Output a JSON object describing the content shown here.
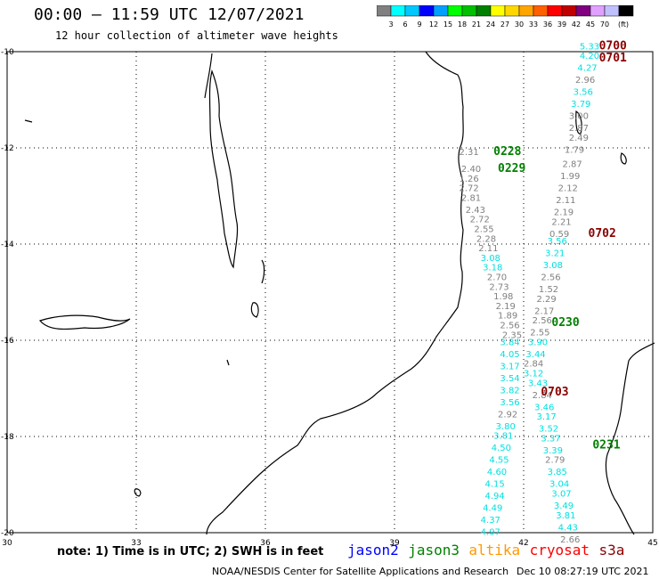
{
  "header": {
    "title": "00:00 – 11:59 UTC 12/07/2021",
    "subtitle": "12 hour collection of altimeter wave heights"
  },
  "color_scale": {
    "unit": "(ft)",
    "ticks": [
      "3",
      "6",
      "9",
      "12",
      "15",
      "18",
      "21",
      "24",
      "27",
      "30",
      "33",
      "36",
      "39",
      "42",
      "45",
      "70"
    ],
    "colors": [
      "#808080",
      "#00ffff",
      "#00c8ff",
      "#0000ff",
      "#00a0ff",
      "#00ff00",
      "#00c000",
      "#008000",
      "#ffff00",
      "#ffd700",
      "#ffa500",
      "#ff6000",
      "#ff0000",
      "#c00000",
      "#800080",
      "#e0a0ff",
      "#c0c0ff",
      "#000000"
    ]
  },
  "axes": {
    "lon_labels": [
      "30",
      "33",
      "36",
      "39",
      "42",
      "45"
    ],
    "lat_labels": [
      "-10",
      "-12",
      "-14",
      "-16",
      "-18",
      "-20"
    ]
  },
  "footer": {
    "note": "note: 1) Time is in UTC; 2) SWH is in feet",
    "satellites": [
      {
        "name": "jason2",
        "color": "#0000ff"
      },
      {
        "name": "jason3",
        "color": "#008000"
      },
      {
        "name": "altika",
        "color": "#ff9900"
      },
      {
        "name": "cryosat",
        "color": "#ff0000"
      },
      {
        "name": "s3a",
        "color": "#8b0000"
      }
    ],
    "credit": "NOAA/NESDIS Center for Satellite Applications and Research",
    "timestamp": "Dec 10 08:27:19 UTC 2021"
  },
  "tracks": [
    {
      "label": "0700",
      "color": "#8b0000",
      "lon": 43.75,
      "lat": -9.95
    },
    {
      "label": "0701",
      "color": "#8b0000",
      "lon": 43.75,
      "lat": -10.2
    },
    {
      "label": "0228",
      "color": "#008000",
      "lon": 41.3,
      "lat": -12.15
    },
    {
      "label": "0229",
      "color": "#008000",
      "lon": 41.4,
      "lat": -12.5
    },
    {
      "label": "0702",
      "color": "#8b0000",
      "lon": 43.5,
      "lat": -13.85
    },
    {
      "label": "0230",
      "color": "#008000",
      "lon": 42.65,
      "lat": -15.7
    },
    {
      "label": "0703",
      "color": "#8b0000",
      "lon": 42.4,
      "lat": -17.15
    },
    {
      "label": "0231",
      "color": "#008000",
      "lon": 43.6,
      "lat": -18.25
    }
  ],
  "observations": [
    {
      "v": "5.33",
      "c": "#00e0e0",
      "lon": 43.3,
      "lat": -9.95
    },
    {
      "v": "4.20",
      "c": "#00e0e0",
      "lon": 43.3,
      "lat": -10.15
    },
    {
      "v": "4.27",
      "c": "#00e0e0",
      "lon": 43.25,
      "lat": -10.4
    },
    {
      "v": "2.96",
      "c": "#808080",
      "lon": 43.2,
      "lat": -10.65
    },
    {
      "v": "3.56",
      "c": "#00e0e0",
      "lon": 43.15,
      "lat": -10.9
    },
    {
      "v": "3.79",
      "c": "#00e0e0",
      "lon": 43.1,
      "lat": -11.15
    },
    {
      "v": "3.00",
      "c": "#808080",
      "lon": 43.05,
      "lat": -11.4
    },
    {
      "v": "2.87",
      "c": "#808080",
      "lon": 43.05,
      "lat": -11.65
    },
    {
      "v": "2.49",
      "c": "#808080",
      "lon": 43.05,
      "lat": -11.85
    },
    {
      "v": "1.79",
      "c": "#808080",
      "lon": 42.95,
      "lat": -12.1
    },
    {
      "v": "2.87",
      "c": "#808080",
      "lon": 42.9,
      "lat": -12.4
    },
    {
      "v": "1.99",
      "c": "#808080",
      "lon": 42.85,
      "lat": -12.65
    },
    {
      "v": "2.12",
      "c": "#808080",
      "lon": 42.8,
      "lat": -12.9
    },
    {
      "v": "2.11",
      "c": "#808080",
      "lon": 42.75,
      "lat": -13.15
    },
    {
      "v": "2.19",
      "c": "#808080",
      "lon": 42.7,
      "lat": -13.4
    },
    {
      "v": "2.21",
      "c": "#808080",
      "lon": 42.65,
      "lat": -13.6
    },
    {
      "v": "0.59",
      "c": "#808080",
      "lon": 42.6,
      "lat": -13.85
    },
    {
      "v": "3.56",
      "c": "#00e0e0",
      "lon": 42.55,
      "lat": -14.0
    },
    {
      "v": "3.21",
      "c": "#00e0e0",
      "lon": 42.5,
      "lat": -14.25
    },
    {
      "v": "3.08",
      "c": "#00e0e0",
      "lon": 42.45,
      "lat": -14.5
    },
    {
      "v": "2.56",
      "c": "#808080",
      "lon": 42.4,
      "lat": -14.75
    },
    {
      "v": "1.52",
      "c": "#808080",
      "lon": 42.35,
      "lat": -15.0
    },
    {
      "v": "2.29",
      "c": "#808080",
      "lon": 42.3,
      "lat": -15.2
    },
    {
      "v": "2.17",
      "c": "#808080",
      "lon": 42.25,
      "lat": -15.45
    },
    {
      "v": "2.56",
      "c": "#808080",
      "lon": 42.2,
      "lat": -15.65
    },
    {
      "v": "2.55",
      "c": "#808080",
      "lon": 42.15,
      "lat": -15.9
    },
    {
      "v": "3.90",
      "c": "#00e0e0",
      "lon": 42.1,
      "lat": -16.1
    },
    {
      "v": "3.44",
      "c": "#00e0e0",
      "lon": 42.05,
      "lat": -16.35
    },
    {
      "v": "2.84",
      "c": "#808080",
      "lon": 42.0,
      "lat": -16.55
    },
    {
      "v": "3.12",
      "c": "#00e0e0",
      "lon": 42.0,
      "lat": -16.75
    },
    {
      "v": "3.43",
      "c": "#00e0e0",
      "lon": 42.1,
      "lat": -16.95
    },
    {
      "v": "2.84",
      "c": "#808080",
      "lon": 42.2,
      "lat": -17.2
    },
    {
      "v": "3.46",
      "c": "#00e0e0",
      "lon": 42.25,
      "lat": -17.45
    },
    {
      "v": "3.17",
      "c": "#00e0e0",
      "lon": 42.3,
      "lat": -17.65
    },
    {
      "v": "3.52",
      "c": "#00e0e0",
      "lon": 42.35,
      "lat": -17.9
    },
    {
      "v": "3.37",
      "c": "#00e0e0",
      "lon": 42.4,
      "lat": -18.1
    },
    {
      "v": "3.39",
      "c": "#00e0e0",
      "lon": 42.45,
      "lat": -18.35
    },
    {
      "v": "2.79",
      "c": "#808080",
      "lon": 42.5,
      "lat": -18.55
    },
    {
      "v": "3.85",
      "c": "#00e0e0",
      "lon": 42.55,
      "lat": -18.8
    },
    {
      "v": "3.04",
      "c": "#00e0e0",
      "lon": 42.6,
      "lat": -19.05
    },
    {
      "v": "3.07",
      "c": "#00e0e0",
      "lon": 42.65,
      "lat": -19.25
    },
    {
      "v": "3.49",
      "c": "#00e0e0",
      "lon": 42.7,
      "lat": -19.5
    },
    {
      "v": "3.81",
      "c": "#00e0e0",
      "lon": 42.75,
      "lat": -19.7
    },
    {
      "v": "4.43",
      "c": "#00e0e0",
      "lon": 42.8,
      "lat": -19.95
    },
    {
      "v": "2.66",
      "c": "#808080",
      "lon": 42.85,
      "lat": -20.2
    },
    {
      "v": "2.31",
      "c": "#808080",
      "lon": 40.5,
      "lat": -12.15
    },
    {
      "v": "2.40",
      "c": "#808080",
      "lon": 40.55,
      "lat": -12.5
    },
    {
      "v": "1.26",
      "c": "#808080",
      "lon": 40.5,
      "lat": -12.7
    },
    {
      "v": "2.72",
      "c": "#808080",
      "lon": 40.5,
      "lat": -12.9
    },
    {
      "v": "2.81",
      "c": "#808080",
      "lon": 40.55,
      "lat": -13.1
    },
    {
      "v": "2.43",
      "c": "#808080",
      "lon": 40.65,
      "lat": -13.35
    },
    {
      "v": "2.72",
      "c": "#808080",
      "lon": 40.75,
      "lat": -13.55
    },
    {
      "v": "2.55",
      "c": "#808080",
      "lon": 40.85,
      "lat": -13.75
    },
    {
      "v": "2.28",
      "c": "#808080",
      "lon": 40.9,
      "lat": -13.95
    },
    {
      "v": "2.11",
      "c": "#808080",
      "lon": 40.95,
      "lat": -14.15
    },
    {
      "v": "3.08",
      "c": "#00e0e0",
      "lon": 41.0,
      "lat": -14.35
    },
    {
      "v": "3.18",
      "c": "#00e0e0",
      "lon": 41.05,
      "lat": -14.55
    },
    {
      "v": "2.70",
      "c": "#808080",
      "lon": 41.15,
      "lat": -14.75
    },
    {
      "v": "2.73",
      "c": "#808080",
      "lon": 41.2,
      "lat": -14.95
    },
    {
      "v": "1.98",
      "c": "#808080",
      "lon": 41.3,
      "lat": -15.15
    },
    {
      "v": "2.19",
      "c": "#808080",
      "lon": 41.35,
      "lat": -15.35
    },
    {
      "v": "1.89",
      "c": "#808080",
      "lon": 41.4,
      "lat": -15.55
    },
    {
      "v": "2.56",
      "c": "#808080",
      "lon": 41.45,
      "lat": -15.75
    },
    {
      "v": "2.35",
      "c": "#808080",
      "lon": 41.5,
      "lat": -15.95
    },
    {
      "v": "3.84",
      "c": "#00e0e0",
      "lon": 41.45,
      "lat": -16.1
    },
    {
      "v": "4.05",
      "c": "#00e0e0",
      "lon": 41.45,
      "lat": -16.35
    },
    {
      "v": "3.17",
      "c": "#00e0e0",
      "lon": 41.45,
      "lat": -16.6
    },
    {
      "v": "3.54",
      "c": "#00e0e0",
      "lon": 41.45,
      "lat": -16.85
    },
    {
      "v": "3.82",
      "c": "#00e0e0",
      "lon": 41.45,
      "lat": -17.1
    },
    {
      "v": "3.56",
      "c": "#00e0e0",
      "lon": 41.45,
      "lat": -17.35
    },
    {
      "v": "2.92",
      "c": "#808080",
      "lon": 41.4,
      "lat": -17.6
    },
    {
      "v": "3.80",
      "c": "#00e0e0",
      "lon": 41.35,
      "lat": -17.85
    },
    {
      "v": "3.81",
      "c": "#00e0e0",
      "lon": 41.3,
      "lat": -18.05
    },
    {
      "v": "4.50",
      "c": "#00e0e0",
      "lon": 41.25,
      "lat": -18.3
    },
    {
      "v": "4.55",
      "c": "#00e0e0",
      "lon": 41.2,
      "lat": -18.55
    },
    {
      "v": "4.60",
      "c": "#00e0e0",
      "lon": 41.15,
      "lat": -18.8
    },
    {
      "v": "4.15",
      "c": "#00e0e0",
      "lon": 41.1,
      "lat": -19.05
    },
    {
      "v": "4.94",
      "c": "#00e0e0",
      "lon": 41.1,
      "lat": -19.3
    },
    {
      "v": "4.49",
      "c": "#00e0e0",
      "lon": 41.05,
      "lat": -19.55
    },
    {
      "v": "4.37",
      "c": "#00e0e0",
      "lon": 41.0,
      "lat": -19.8
    },
    {
      "v": "4.97",
      "c": "#00e0e0",
      "lon": 41.0,
      "lat": -20.05
    }
  ]
}
